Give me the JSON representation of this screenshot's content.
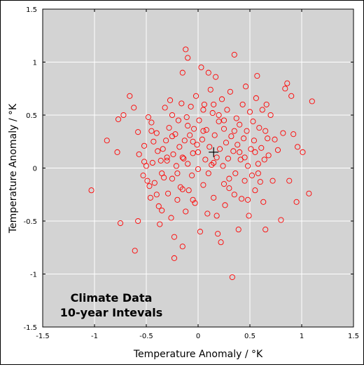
{
  "chart_data": {
    "type": "scatter",
    "title_lines": [
      "Climate Data",
      "10-year Intevals"
    ],
    "xlabel": "Temperature Anomaly / °K",
    "ylabel": "Temperature Anomaly / °K",
    "xlim": [
      -1.5,
      1.5
    ],
    "ylim": [
      -1.5,
      1.5
    ],
    "x_ticks": [
      -1.5,
      -1,
      -0.5,
      0,
      0.5,
      1,
      1.5
    ],
    "y_ticks": [
      -1.5,
      -1,
      -0.5,
      0,
      0.5,
      1,
      1.5
    ],
    "x_tick_labels": [
      "-1.5",
      "-1",
      "-0.5",
      "0",
      "0.5",
      "1",
      "1.5"
    ],
    "y_tick_labels": [
      "-1.5",
      "-1",
      "-0.5",
      "0",
      "0.5",
      "1",
      "1.5"
    ],
    "grid": true,
    "background_color": "#d3d3d3",
    "marker_color": "#ff0000",
    "crosshair_color": "#000000",
    "mean_marker": [
      0.15,
      0.15
    ],
    "series": [
      {
        "marker": "open-circle",
        "points": [
          [
            -1.03,
            -0.21
          ],
          [
            -0.88,
            0.26
          ],
          [
            -0.77,
            0.46
          ],
          [
            -0.78,
            0.15
          ],
          [
            -0.75,
            -0.52
          ],
          [
            -0.72,
            0.5
          ],
          [
            -0.66,
            0.68
          ],
          [
            -0.61,
            -0.78
          ],
          [
            -0.62,
            0.57
          ],
          [
            -0.58,
            0.34
          ],
          [
            -0.57,
            0.13
          ],
          [
            -0.58,
            -0.5
          ],
          [
            -0.52,
            0.06
          ],
          [
            -0.53,
            -0.07
          ],
          [
            -0.52,
            0.21
          ],
          [
            -0.5,
            0.02
          ],
          [
            -0.49,
            -0.12
          ],
          [
            -0.48,
            0.48
          ],
          [
            -0.47,
            -0.17
          ],
          [
            -0.46,
            -0.28
          ],
          [
            -0.45,
            0.43
          ],
          [
            -0.44,
            0.05
          ],
          [
            -0.43,
            0.25
          ],
          [
            -0.42,
            -0.14
          ],
          [
            -0.4,
            0.33
          ],
          [
            -0.39,
            0.16
          ],
          [
            -0.38,
            -0.36
          ],
          [
            -0.37,
            -0.53
          ],
          [
            -0.36,
            0.07
          ],
          [
            -0.35,
            -0.4
          ],
          [
            -0.34,
            0.18
          ],
          [
            -0.33,
            -0.09
          ],
          [
            -0.32,
            0.57
          ],
          [
            -0.31,
            0.26
          ],
          [
            -0.3,
            0.07
          ],
          [
            -0.29,
            -0.24
          ],
          [
            -0.28,
            0.38
          ],
          [
            -0.27,
            0.64
          ],
          [
            -0.26,
            -0.47
          ],
          [
            -0.25,
            -0.1
          ],
          [
            -0.24,
            0.13
          ],
          [
            -0.23,
            -0.65
          ],
          [
            -0.23,
            -0.85
          ],
          [
            -0.22,
            0.32
          ],
          [
            -0.21,
            0.02
          ],
          [
            -0.2,
            -0.3
          ],
          [
            -0.19,
            0.45
          ],
          [
            -0.18,
            0.2
          ],
          [
            -0.17,
            -0.18
          ],
          [
            -0.16,
            0.61
          ],
          [
            -0.15,
            0.9
          ],
          [
            -0.15,
            -0.74
          ],
          [
            -0.14,
            0.09
          ],
          [
            -0.13,
            0.26
          ],
          [
            -0.12,
            1.12
          ],
          [
            -0.12,
            -0.41
          ],
          [
            -0.11,
            0.48
          ],
          [
            -0.1,
            1.04
          ],
          [
            -0.1,
            0.04
          ],
          [
            -0.09,
            -0.21
          ],
          [
            -0.08,
            0.31
          ],
          [
            -0.07,
            0.58
          ],
          [
            -0.06,
            -0.07
          ],
          [
            -0.05,
            0.14
          ],
          [
            -0.04,
            0.37
          ],
          [
            -0.03,
            -0.33
          ],
          [
            -0.02,
            0.68
          ],
          [
            -0.01,
            0.22
          ],
          [
            0.0,
            -0.01
          ],
          [
            0.01,
            0.45
          ],
          [
            0.02,
            -0.6
          ],
          [
            0.03,
            0.95
          ],
          [
            0.04,
            0.27
          ],
          [
            0.05,
            -0.16
          ],
          [
            0.06,
            0.6
          ],
          [
            0.07,
            0.08
          ],
          [
            0.08,
            0.36
          ],
          [
            0.09,
            -0.43
          ],
          [
            0.1,
            0.9
          ],
          [
            0.11,
            0.2
          ],
          [
            0.12,
            0.74
          ],
          [
            0.13,
            0.03
          ],
          [
            0.14,
            0.52
          ],
          [
            0.15,
            -0.28
          ],
          [
            0.16,
            0.31
          ],
          [
            0.17,
            0.86
          ],
          [
            0.18,
            0.1
          ],
          [
            0.19,
            -0.62
          ],
          [
            0.2,
            0.44
          ],
          [
            0.21,
            0.18
          ],
          [
            0.22,
            -0.7
          ],
          [
            0.23,
            0.65
          ],
          [
            0.24,
            0.02
          ],
          [
            0.25,
            0.37
          ],
          [
            0.26,
            -0.35
          ],
          [
            0.27,
            0.24
          ],
          [
            0.28,
            0.55
          ],
          [
            0.29,
            0.09
          ],
          [
            0.3,
            -0.19
          ],
          [
            0.31,
            0.72
          ],
          [
            0.32,
            0.3
          ],
          [
            0.33,
            -1.03
          ],
          [
            0.34,
            0.16
          ],
          [
            0.35,
            1.07
          ],
          [
            0.36,
            -0.05
          ],
          [
            0.37,
            0.47
          ],
          [
            0.38,
            0.22
          ],
          [
            0.39,
            -0.58
          ],
          [
            0.4,
            0.41
          ],
          [
            0.41,
            0.08
          ],
          [
            0.42,
            -0.29
          ],
          [
            0.43,
            0.6
          ],
          [
            0.44,
            0.28
          ],
          [
            0.45,
            -0.12
          ],
          [
            0.46,
            0.77
          ],
          [
            0.47,
            0.35
          ],
          [
            0.48,
            0.02
          ],
          [
            0.49,
            -0.45
          ],
          [
            0.5,
            0.53
          ],
          [
            0.51,
            0.18
          ],
          [
            0.52,
            -0.07
          ],
          [
            0.53,
            0.44
          ],
          [
            0.54,
            0.26
          ],
          [
            0.55,
            -0.21
          ],
          [
            0.56,
            0.66
          ],
          [
            0.57,
            0.87
          ],
          [
            0.58,
            0.04
          ],
          [
            0.59,
            0.38
          ],
          [
            0.6,
            -0.13
          ],
          [
            0.61,
            0.19
          ],
          [
            0.62,
            0.55
          ],
          [
            0.63,
            -0.32
          ],
          [
            0.64,
            0.08
          ],
          [
            0.65,
            -0.58
          ],
          [
            0.66,
            0.6
          ],
          [
            0.67,
            0.28
          ],
          [
            0.7,
            0.5
          ],
          [
            0.72,
            -0.12
          ],
          [
            0.74,
            0.27
          ],
          [
            0.77,
            0.17
          ],
          [
            0.8,
            -0.49
          ],
          [
            0.82,
            0.33
          ],
          [
            0.84,
            0.75
          ],
          [
            0.86,
            0.8
          ],
          [
            0.88,
            -0.12
          ],
          [
            0.9,
            0.68
          ],
          [
            0.92,
            0.32
          ],
          [
            0.95,
            -0.32
          ],
          [
            0.96,
            0.2
          ],
          [
            1.01,
            0.15
          ],
          [
            1.07,
            -0.24
          ],
          [
            1.1,
            0.63
          ],
          [
            -0.3,
            0.1
          ],
          [
            -0.2,
            -0.05
          ],
          [
            -0.1,
            0.4
          ],
          [
            0.0,
            0.15
          ],
          [
            0.1,
            -0.05
          ],
          [
            0.2,
            0.5
          ],
          [
            0.3,
            -0.1
          ],
          [
            0.4,
            0.15
          ],
          [
            -0.25,
            0.5
          ],
          [
            -0.15,
            -0.2
          ],
          [
            -0.05,
            0.25
          ],
          [
            0.05,
            0.55
          ],
          [
            0.15,
            0.05
          ],
          [
            0.25,
            0.45
          ],
          [
            0.35,
            -0.25
          ],
          [
            0.45,
            0.1
          ],
          [
            -0.35,
            -0.05
          ],
          [
            -0.25,
            0.3
          ],
          [
            -0.15,
            0.1
          ],
          [
            -0.05,
            -0.3
          ],
          [
            0.05,
            0.35
          ],
          [
            0.15,
            0.6
          ],
          [
            0.25,
            -0.15
          ],
          [
            0.35,
            0.35
          ],
          [
            0.55,
            0.15
          ],
          [
            0.65,
            0.35
          ],
          [
            -0.45,
            0.35
          ],
          [
            -0.4,
            -0.25
          ],
          [
            0.48,
            -0.3
          ],
          [
            0.58,
            -0.05
          ],
          [
            0.68,
            0.12
          ],
          [
            0.18,
            -0.45
          ]
        ]
      }
    ]
  }
}
